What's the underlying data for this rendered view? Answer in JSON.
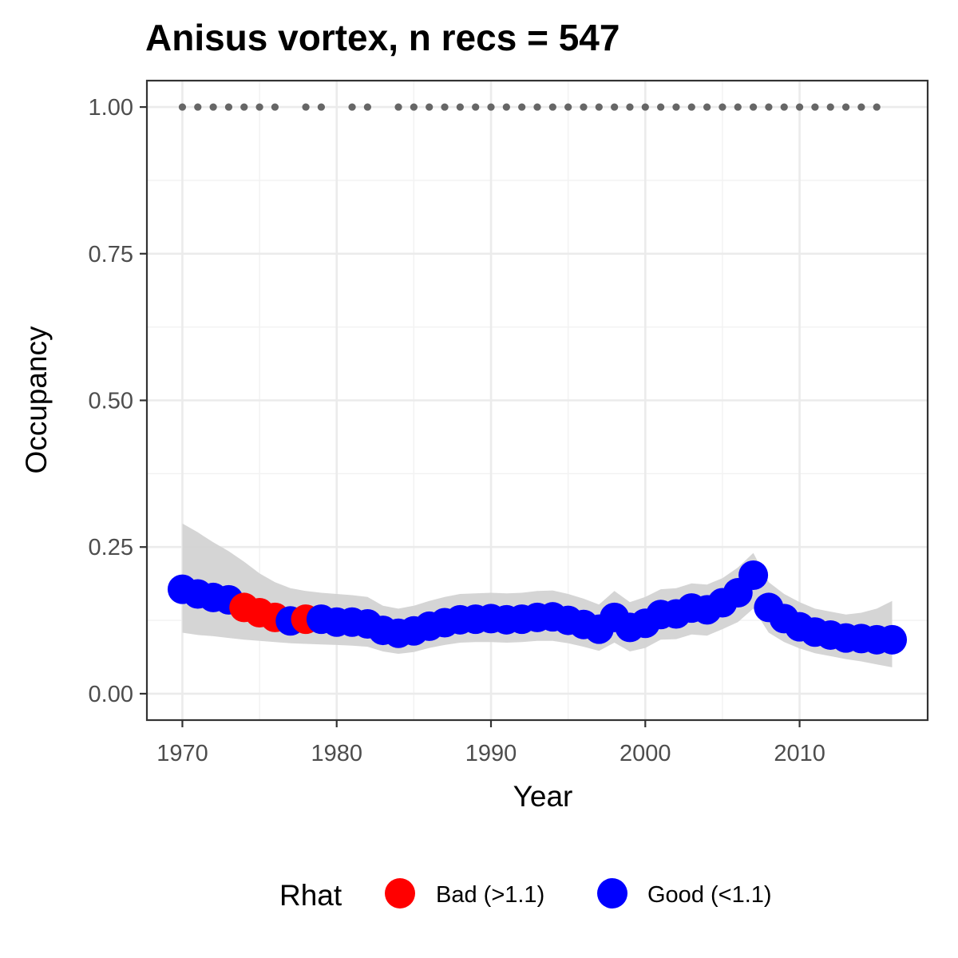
{
  "chart_data": {
    "type": "line",
    "title": "Anisus vortex, n recs = 547",
    "xlabel": "Year",
    "ylabel": "Occupancy",
    "xlim": [
      1967.7,
      2018.3
    ],
    "ylim": [
      -0.045,
      1.045
    ],
    "x_ticks": [
      1970,
      1980,
      1990,
      2000,
      2010
    ],
    "x_tick_labels": [
      "1970",
      "1980",
      "1990",
      "2000",
      "2010"
    ],
    "y_ticks": [
      0,
      0.25,
      0.5,
      0.75,
      1.0
    ],
    "y_tick_labels": [
      "0.00",
      "0.25",
      "0.50",
      "0.75",
      "1.00"
    ],
    "grid": true,
    "legend": {
      "title": "Rhat",
      "placement": "bottom",
      "items": [
        {
          "key": "bad",
          "label": "Bad (>1.1)",
          "color": "#ff0000"
        },
        {
          "key": "good",
          "label": "Good (<1.1)",
          "color": "#0000ff"
        }
      ]
    },
    "colors": {
      "bad": "#ff0000",
      "good": "#0000ff",
      "ribbon": "#d3d3d3",
      "record_dots": "#666666"
    },
    "series": [
      {
        "x": [
          1970,
          1971,
          1972,
          1973,
          1974,
          1975,
          1976,
          1977,
          1978,
          1979,
          1980,
          1981,
          1982,
          1983,
          1984,
          1985,
          1986,
          1987,
          1988,
          1989,
          1990,
          1991,
          1992,
          1993,
          1994,
          1995,
          1996,
          1997,
          1998,
          1999,
          2000,
          2001,
          2002,
          2003,
          2004,
          2005,
          2006,
          2007,
          2008,
          2009,
          2010,
          2011,
          2012,
          2013,
          2014,
          2015,
          2016
        ],
        "y": [
          0.178,
          0.17,
          0.164,
          0.16,
          0.147,
          0.138,
          0.13,
          0.124,
          0.127,
          0.127,
          0.122,
          0.122,
          0.119,
          0.108,
          0.103,
          0.107,
          0.115,
          0.121,
          0.126,
          0.127,
          0.128,
          0.126,
          0.127,
          0.13,
          0.131,
          0.125,
          0.118,
          0.11,
          0.13,
          0.113,
          0.12,
          0.135,
          0.136,
          0.146,
          0.143,
          0.155,
          0.172,
          0.202,
          0.147,
          0.128,
          0.114,
          0.105,
          0.1,
          0.095,
          0.094,
          0.092,
          0.092
        ],
        "rhat": [
          "good",
          "good",
          "good",
          "good",
          "bad",
          "bad",
          "bad",
          "good",
          "bad",
          "good",
          "good",
          "good",
          "good",
          "good",
          "good",
          "good",
          "good",
          "good",
          "good",
          "good",
          "good",
          "good",
          "good",
          "good",
          "good",
          "good",
          "good",
          "good",
          "good",
          "good",
          "good",
          "good",
          "good",
          "good",
          "good",
          "good",
          "good",
          "good",
          "good",
          "good",
          "good",
          "good",
          "good",
          "good",
          "good",
          "good",
          "good"
        ],
        "lower": [
          0.104,
          0.1,
          0.098,
          0.095,
          0.092,
          0.09,
          0.088,
          0.086,
          0.085,
          0.084,
          0.083,
          0.082,
          0.08,
          0.072,
          0.068,
          0.071,
          0.078,
          0.083,
          0.087,
          0.088,
          0.088,
          0.087,
          0.088,
          0.09,
          0.09,
          0.086,
          0.08,
          0.073,
          0.087,
          0.072,
          0.078,
          0.092,
          0.093,
          0.101,
          0.099,
          0.11,
          0.122,
          0.145,
          0.104,
          0.088,
          0.077,
          0.069,
          0.064,
          0.059,
          0.055,
          0.05,
          0.045
        ],
        "upper": [
          0.29,
          0.275,
          0.258,
          0.243,
          0.225,
          0.205,
          0.19,
          0.18,
          0.175,
          0.172,
          0.17,
          0.168,
          0.165,
          0.15,
          0.145,
          0.15,
          0.158,
          0.165,
          0.17,
          0.171,
          0.172,
          0.171,
          0.172,
          0.175,
          0.176,
          0.17,
          0.162,
          0.152,
          0.175,
          0.156,
          0.165,
          0.178,
          0.18,
          0.188,
          0.186,
          0.197,
          0.215,
          0.24,
          0.19,
          0.17,
          0.156,
          0.145,
          0.14,
          0.135,
          0.138,
          0.145,
          0.158
        ]
      }
    ],
    "record_years": [
      1970,
      1971,
      1972,
      1973,
      1974,
      1975,
      1976,
      1978,
      1979,
      1981,
      1982,
      1984,
      1985,
      1986,
      1987,
      1988,
      1989,
      1990,
      1991,
      1992,
      1993,
      1994,
      1995,
      1996,
      1997,
      1998,
      1999,
      2000,
      2001,
      2002,
      2003,
      2004,
      2005,
      2006,
      2007,
      2008,
      2009,
      2010,
      2011,
      2012,
      2013,
      2014,
      2015
    ],
    "record_value": 1.0
  }
}
